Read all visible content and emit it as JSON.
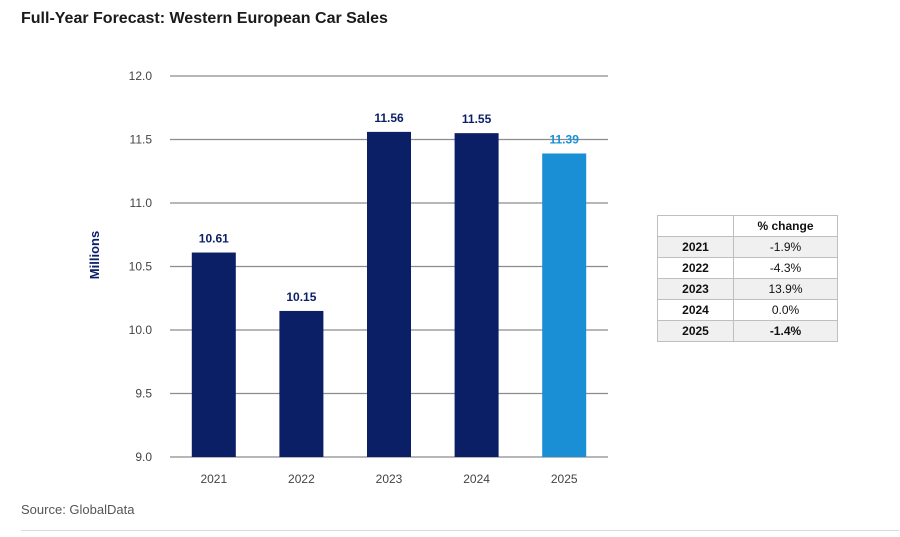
{
  "title": "Full-Year Forecast: Western European Car Sales",
  "source": "Source: GlobalData",
  "colors": {
    "bar_dark": "#0b1f66",
    "bar_light": "#1a8fd6",
    "grid": "#8c8c8c",
    "label_dark": "#0b1f66",
    "label_light": "#1a8fd6"
  },
  "chart_data": {
    "type": "bar",
    "title": "Full-Year Forecast: Western European Car Sales",
    "xlabel": "",
    "ylabel": "Millions",
    "categories": [
      "2021",
      "2022",
      "2023",
      "2024",
      "2025"
    ],
    "values": [
      10.61,
      10.15,
      11.56,
      11.55,
      11.39
    ],
    "value_labels": [
      "10.61",
      "10.15",
      "11.56",
      "11.55",
      "11.39"
    ],
    "ylim": [
      9.0,
      12.0
    ],
    "yticks": [
      "9.0",
      "9.5",
      "10.0",
      "10.5",
      "11.0",
      "11.5",
      "12.0"
    ],
    "ytick_values": [
      9.0,
      9.5,
      10.0,
      10.5,
      11.0,
      11.5,
      12.0
    ],
    "grid": true,
    "highlight_last": true
  },
  "change_table": {
    "header": "% change",
    "rows": [
      {
        "year": "2021",
        "change": "-1.9%"
      },
      {
        "year": "2022",
        "change": "-4.3%"
      },
      {
        "year": "2023",
        "change": "13.9%"
      },
      {
        "year": "2024",
        "change": "0.0%"
      },
      {
        "year": "2025",
        "change": "-1.4%"
      }
    ]
  }
}
